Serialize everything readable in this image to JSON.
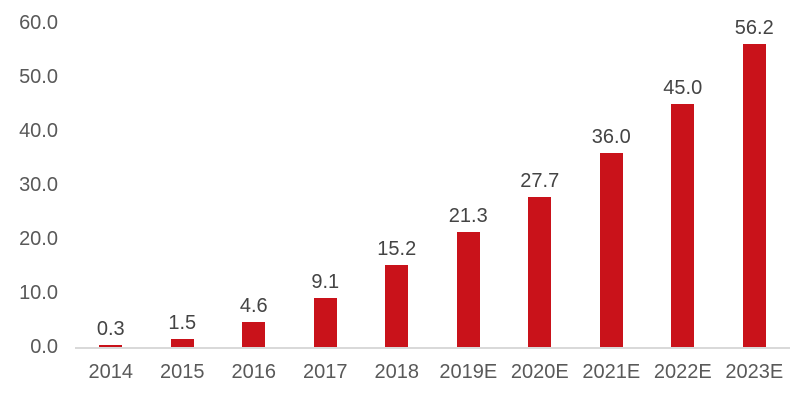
{
  "chart_data": {
    "type": "bar",
    "title": "",
    "xlabel": "",
    "ylabel": "",
    "categories": [
      "2014",
      "2015",
      "2016",
      "2017",
      "2018",
      "2019E",
      "2020E",
      "2021E",
      "2022E",
      "2023E"
    ],
    "values": [
      0.3,
      1.5,
      4.6,
      9.1,
      15.2,
      21.3,
      27.7,
      36.0,
      45.0,
      56.2
    ],
    "value_labels": [
      "0.3",
      "1.5",
      "4.6",
      "9.1",
      "15.2",
      "21.3",
      "27.7",
      "36.0",
      "45.0",
      "56.2"
    ],
    "ylim": [
      0,
      60
    ],
    "ytick_step": 10,
    "yticks": [
      "0.0",
      "10.0",
      "20.0",
      "30.0",
      "40.0",
      "50.0",
      "60.0"
    ],
    "grid": false,
    "legend": null,
    "colors": {
      "bar": "#c9121a",
      "axis_line": "#d9d9d9",
      "tick_label": "#595959",
      "value_label": "#444444",
      "background": "#ffffff"
    }
  }
}
